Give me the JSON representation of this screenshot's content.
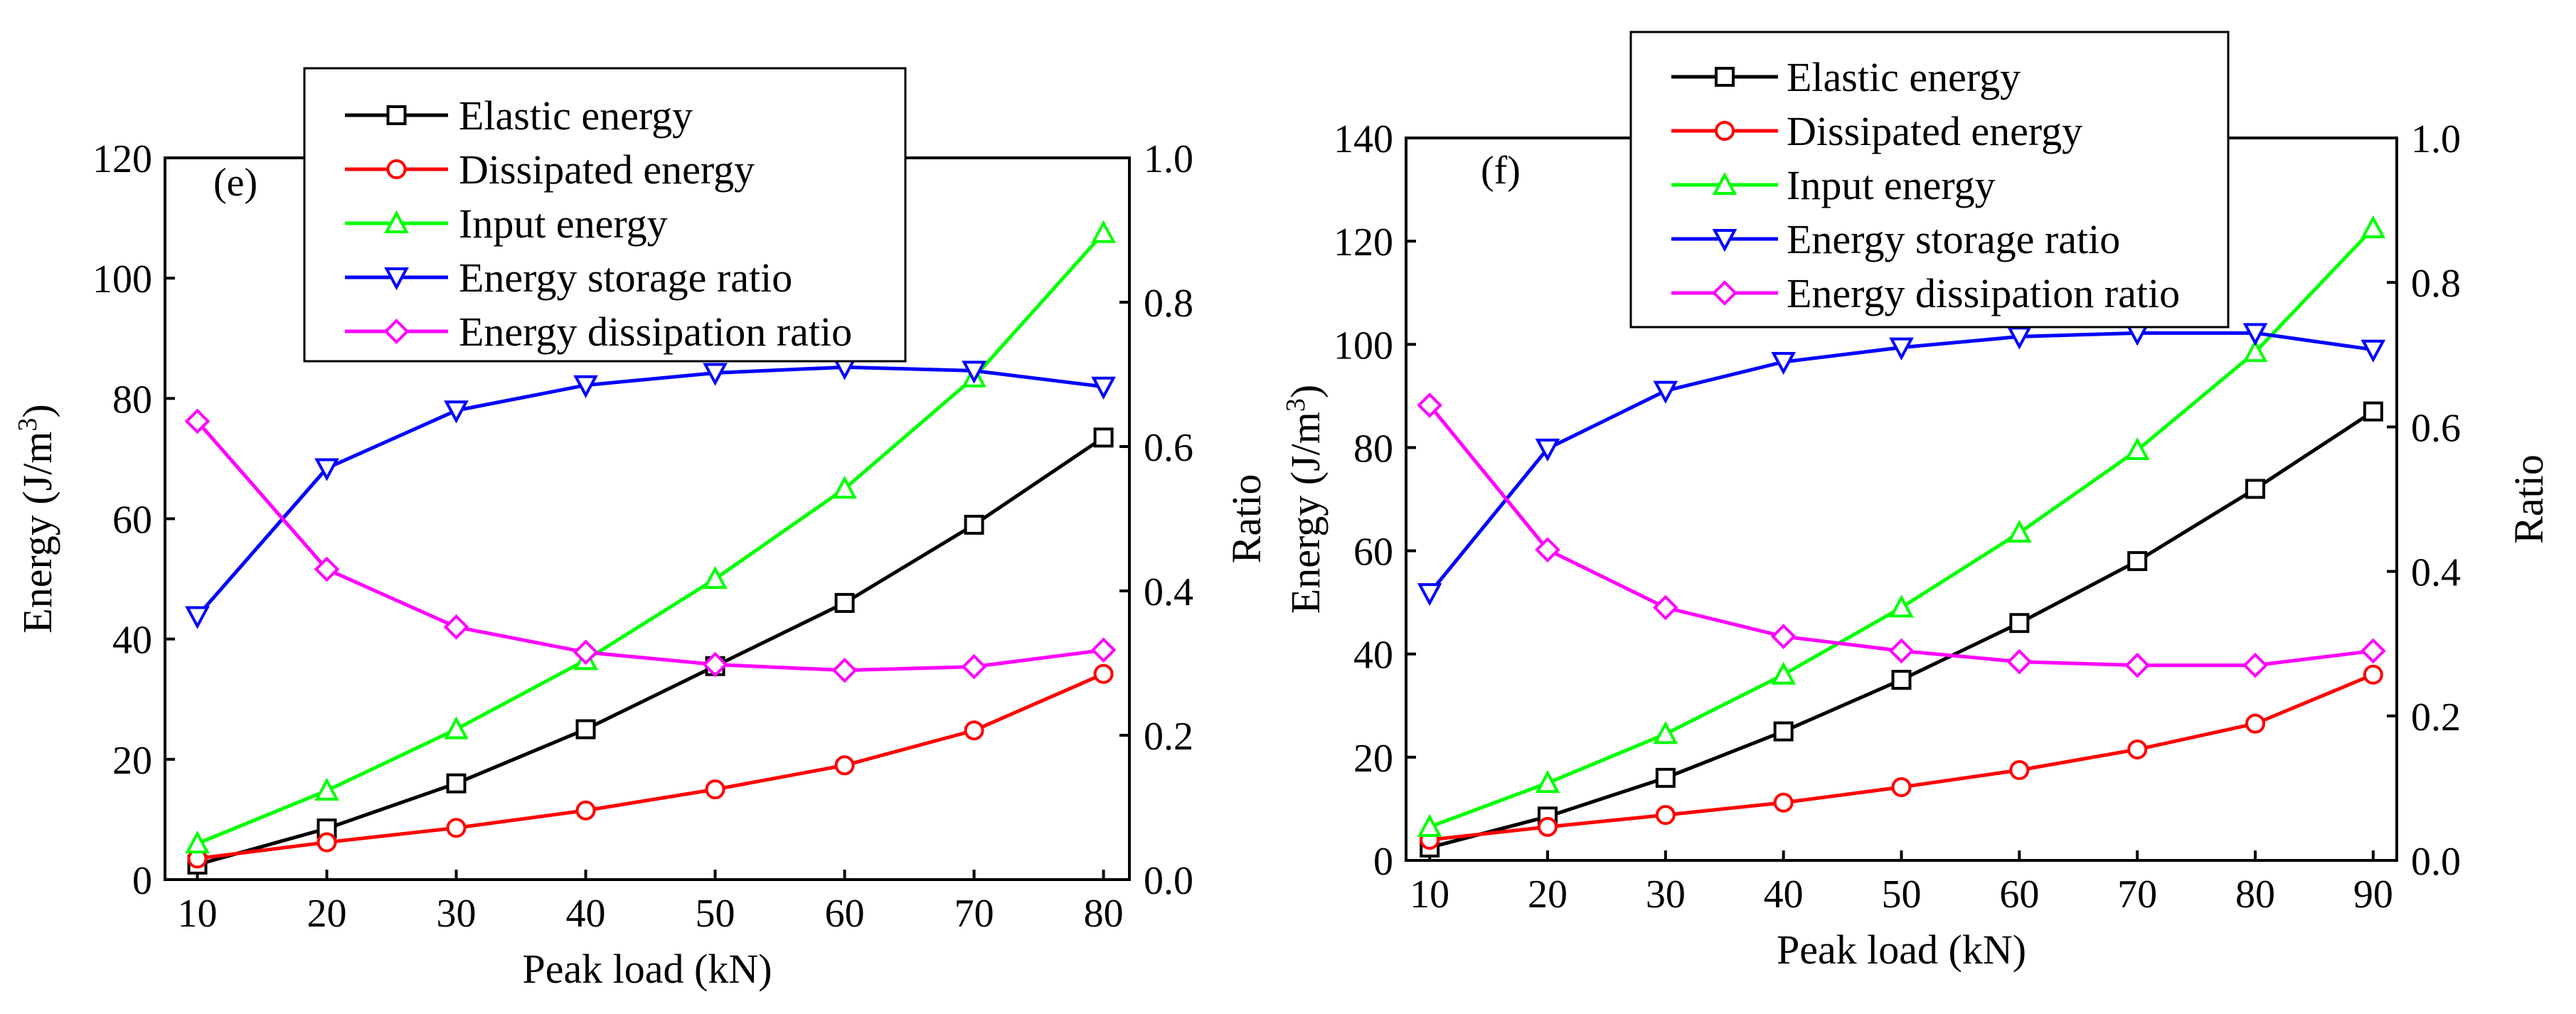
{
  "chart_data": [
    {
      "type": "line",
      "panel_label": "(e)",
      "xlabel": "Peak load (kN)",
      "ylabel_left": "Energy (J/m",
      "ylabel_left_sup": "3",
      "ylabel_left_end": ")",
      "ylabel_right": "Ratio",
      "x": [
        10,
        20,
        30,
        40,
        50,
        60,
        70,
        80
      ],
      "xlim": [
        7.5,
        82
      ],
      "xticks": [
        "10",
        "20",
        "30",
        "40",
        "50",
        "60",
        "70",
        "80"
      ],
      "ylim_left": [
        0,
        120
      ],
      "yticks_left": [
        "0",
        "20",
        "40",
        "60",
        "80",
        "100",
        "120"
      ],
      "ylim_right": [
        0,
        1.0
      ],
      "yticks_right": [
        "0.0",
        "0.2",
        "0.4",
        "0.6",
        "0.8",
        "1.0"
      ],
      "legend": [
        {
          "name": "Elastic energy",
          "color": "#000000",
          "marker": "square"
        },
        {
          "name": "Dissipated energy",
          "color": "#ff0000",
          "marker": "circle"
        },
        {
          "name": "Input energy",
          "color": "#00ff00",
          "marker": "triangle-up"
        },
        {
          "name": "Energy storage ratio",
          "color": "#0000ff",
          "marker": "triangle-down"
        },
        {
          "name": "Energy dissipation ratio",
          "color": "#ff00ff",
          "marker": "diamond"
        }
      ],
      "series": [
        {
          "name": "Elastic energy",
          "axis": "left",
          "color": "#000000",
          "marker": "square",
          "values": [
            2.5,
            8.5,
            16,
            25,
            35.5,
            46,
            59,
            73.5
          ]
        },
        {
          "name": "Dissipated energy",
          "axis": "left",
          "color": "#ff0000",
          "marker": "circle",
          "values": [
            3.5,
            6.2,
            8.6,
            11.5,
            15,
            19,
            24.8,
            34.2
          ]
        },
        {
          "name": "Input energy",
          "axis": "left",
          "color": "#00ff00",
          "marker": "triangle-up",
          "values": [
            6,
            14.8,
            25,
            36.5,
            50,
            65,
            83.5,
            107.5
          ]
        },
        {
          "name": "Energy storage ratio",
          "axis": "right",
          "color": "#0000ff",
          "marker": "triangle-down",
          "values": [
            0.365,
            0.57,
            0.65,
            0.685,
            0.702,
            0.71,
            0.705,
            0.683
          ]
        },
        {
          "name": "Energy dissipation ratio",
          "axis": "right",
          "color": "#ff00ff",
          "marker": "diamond",
          "values": [
            0.635,
            0.43,
            0.35,
            0.315,
            0.298,
            0.29,
            0.295,
            0.318
          ]
        }
      ]
    },
    {
      "type": "line",
      "panel_label": "(f)",
      "xlabel": "Peak load (kN)",
      "ylabel_left": "Energy (J/m",
      "ylabel_left_sup": "3",
      "ylabel_left_end": ")",
      "ylabel_right": "Ratio",
      "x": [
        10,
        20,
        30,
        40,
        50,
        60,
        70,
        80,
        90
      ],
      "xlim": [
        8,
        92
      ],
      "xticks": [
        "10",
        "20",
        "30",
        "40",
        "50",
        "60",
        "70",
        "80",
        "90"
      ],
      "ylim_left": [
        0,
        140
      ],
      "yticks_left": [
        "0",
        "20",
        "40",
        "60",
        "80",
        "100",
        "120",
        "140"
      ],
      "ylim_right": [
        0,
        1.0
      ],
      "yticks_right": [
        "0.0",
        "0.2",
        "0.4",
        "0.6",
        "0.8",
        "1.0"
      ],
      "legend": [
        {
          "name": "Elastic energy",
          "color": "#000000",
          "marker": "square"
        },
        {
          "name": "Dissipated energy",
          "color": "#ff0000",
          "marker": "circle"
        },
        {
          "name": "Input energy",
          "color": "#00ff00",
          "marker": "triangle-up"
        },
        {
          "name": "Energy storage ratio",
          "color": "#0000ff",
          "marker": "triangle-down"
        },
        {
          "name": "Energy dissipation ratio",
          "color": "#ff00ff",
          "marker": "diamond"
        }
      ],
      "series": [
        {
          "name": "Elastic energy",
          "axis": "left",
          "color": "#000000",
          "marker": "square",
          "values": [
            2.5,
            8.5,
            16,
            25,
            35,
            46,
            58,
            72,
            87
          ]
        },
        {
          "name": "Dissipated energy",
          "axis": "left",
          "color": "#ff0000",
          "marker": "circle",
          "values": [
            4,
            6.5,
            8.8,
            11.2,
            14.2,
            17.5,
            21.5,
            26.5,
            36
          ]
        },
        {
          "name": "Input energy",
          "axis": "left",
          "color": "#00ff00",
          "marker": "triangle-up",
          "values": [
            6.5,
            15,
            24.5,
            36,
            49,
            63.5,
            79.5,
            98.5,
            122.5
          ]
        },
        {
          "name": "Energy storage ratio",
          "axis": "right",
          "color": "#0000ff",
          "marker": "triangle-down",
          "values": [
            0.37,
            0.57,
            0.65,
            0.69,
            0.71,
            0.725,
            0.73,
            0.73,
            0.707
          ]
        },
        {
          "name": "Energy dissipation ratio",
          "axis": "right",
          "color": "#ff00ff",
          "marker": "diamond",
          "values": [
            0.63,
            0.43,
            0.35,
            0.31,
            0.29,
            0.275,
            0.27,
            0.27,
            0.29
          ]
        }
      ]
    }
  ]
}
